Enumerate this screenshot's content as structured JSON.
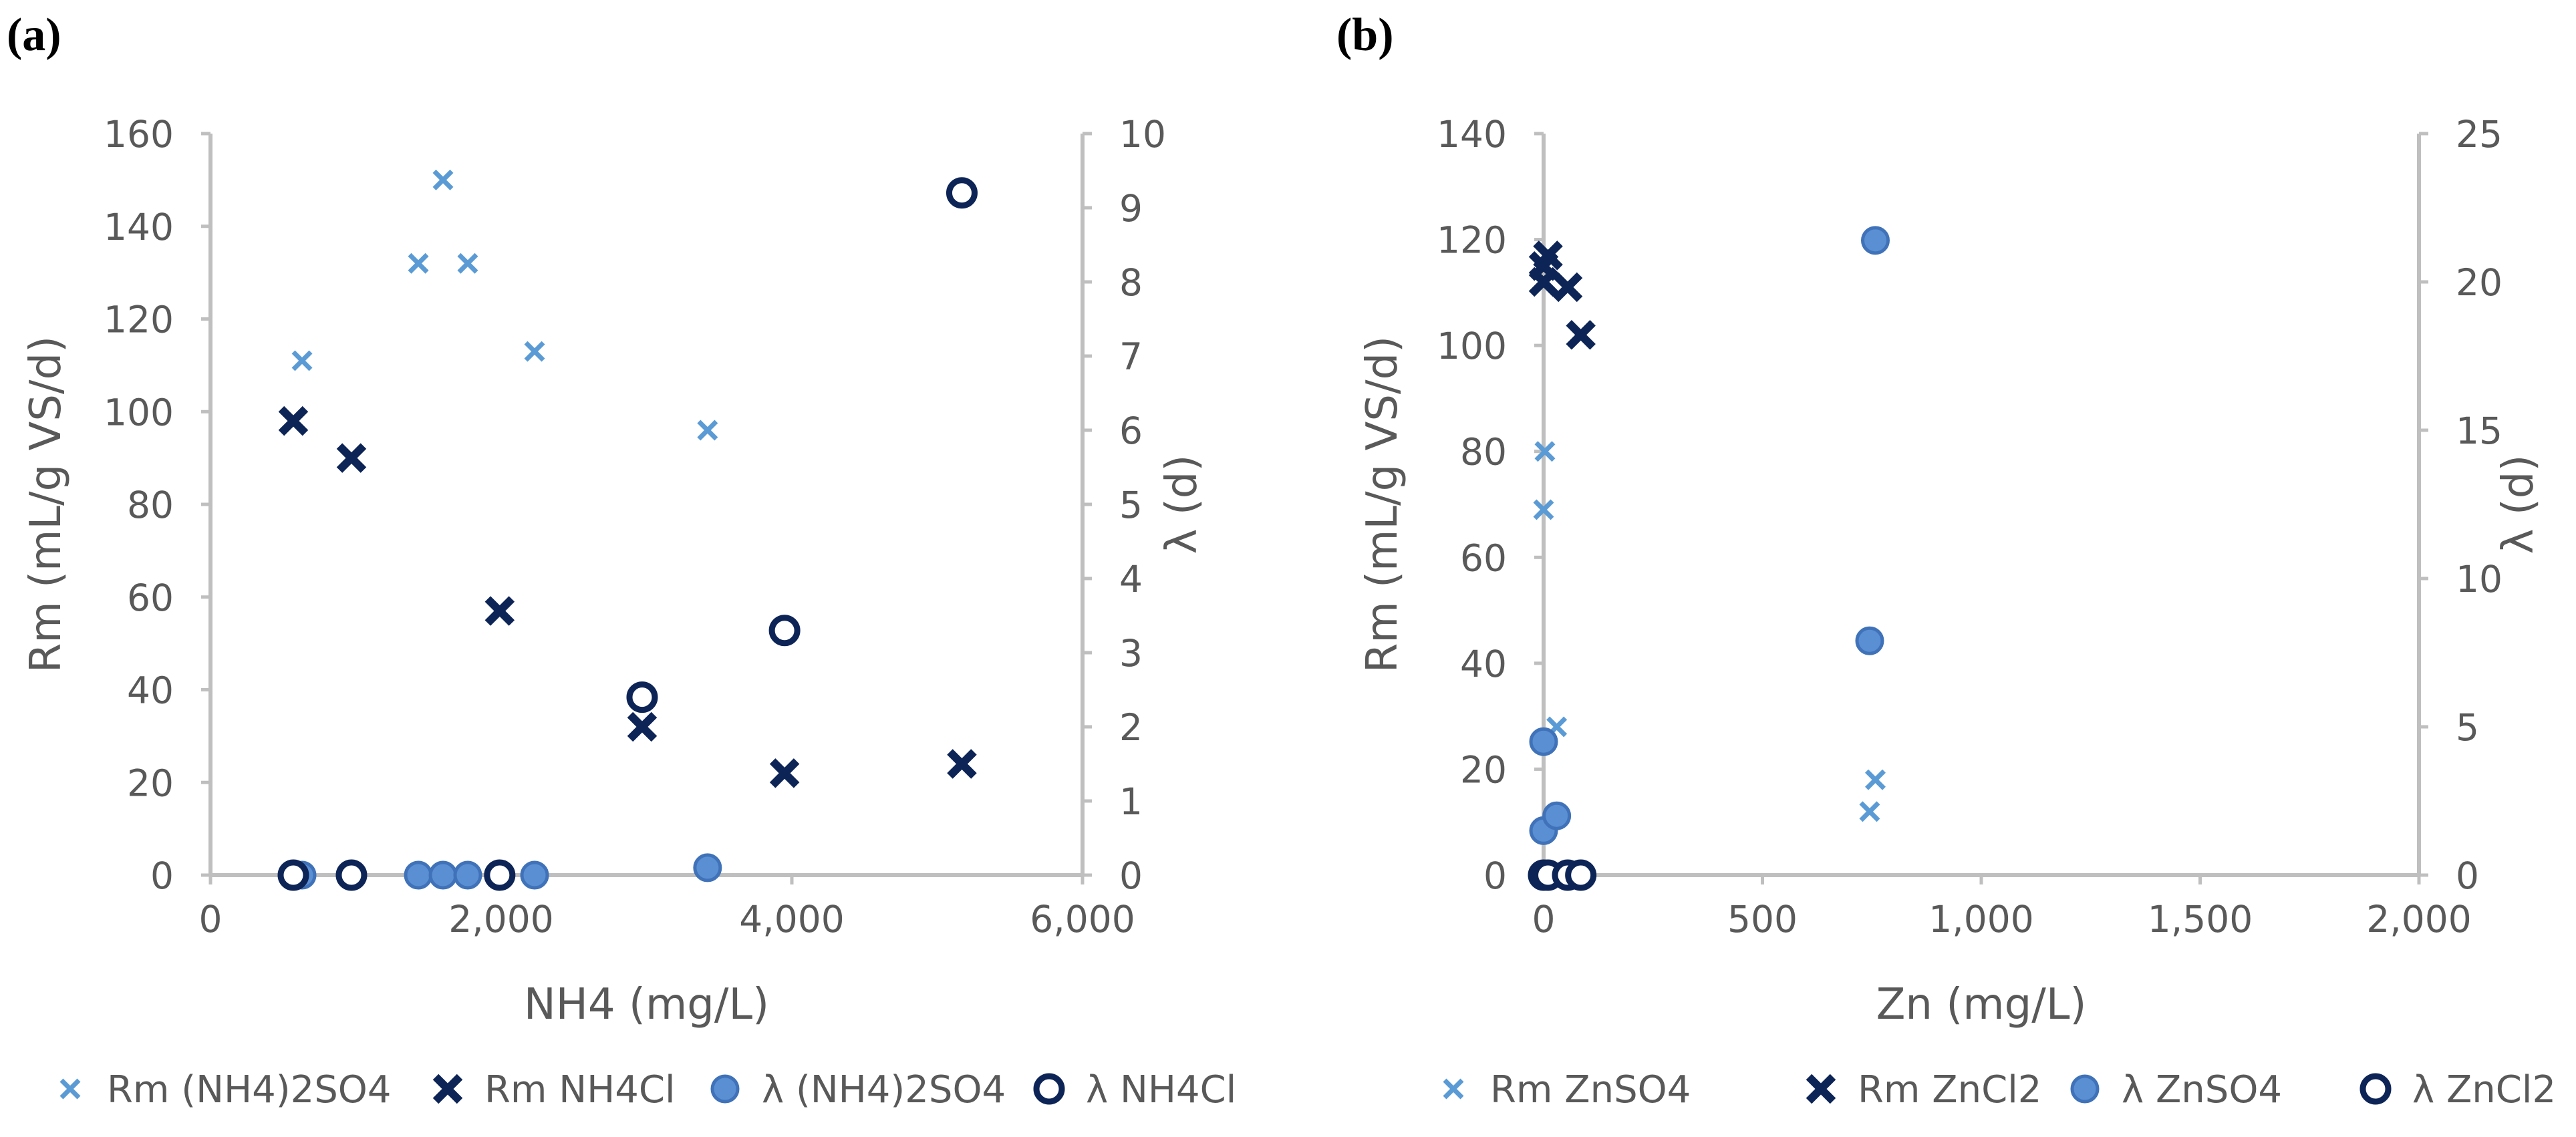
{
  "chart_data": [
    {
      "type": "scatter",
      "panel_label": "(a)",
      "xlabel": "NH4 (mg/L)",
      "ylabel": "Rm (mL/g VS/d)",
      "y2label": "λ (d)",
      "xlim": [
        0,
        6000
      ],
      "ylim": [
        0,
        160
      ],
      "y2lim": [
        0,
        10
      ],
      "xticks": [
        "0",
        "2,000",
        "4,000",
        "6,000"
      ],
      "yticks": [
        "0",
        "20",
        "40",
        "60",
        "80",
        "100",
        "120",
        "140",
        "160"
      ],
      "y2ticks": [
        "0",
        "1",
        "2",
        "3",
        "4",
        "5",
        "6",
        "7",
        "8",
        "9",
        "10"
      ],
      "series": [
        {
          "name": "Rm (NH4)2SO4",
          "marker": "x-light",
          "axis": "left",
          "points": [
            [
              630,
              111
            ],
            [
              1430,
              132
            ],
            [
              1600,
              150
            ],
            [
              1770,
              132
            ],
            [
              2230,
              113
            ],
            [
              3420,
              96
            ]
          ]
        },
        {
          "name": "Rm NH4Cl",
          "marker": "x-dark",
          "axis": "left",
          "points": [
            [
              570,
              98
            ],
            [
              970,
              90
            ],
            [
              1990,
              57
            ],
            [
              2970,
              32
            ],
            [
              3950,
              22
            ],
            [
              5170,
              24
            ]
          ]
        },
        {
          "name": "λ (NH4)2SO4",
          "marker": "dot-filled",
          "axis": "right",
          "points": [
            [
              630,
              0
            ],
            [
              1430,
              0
            ],
            [
              1600,
              0
            ],
            [
              1770,
              0
            ],
            [
              2230,
              0
            ],
            [
              3420,
              0.1
            ]
          ]
        },
        {
          "name": "λ NH4Cl",
          "marker": "circle-open",
          "axis": "right",
          "points": [
            [
              570,
              0
            ],
            [
              970,
              0
            ],
            [
              1990,
              0
            ],
            [
              2970,
              2.4
            ],
            [
              3950,
              3.3
            ],
            [
              5170,
              9.2
            ]
          ]
        }
      ]
    },
    {
      "type": "scatter",
      "panel_label": "(b)",
      "xlabel": "Zn (mg/L)",
      "ylabel": "Rm (mL/g VS/d)",
      "y2label": "λ (d)",
      "xlim": [
        0,
        2000
      ],
      "ylim": [
        0,
        140
      ],
      "y2lim": [
        0,
        25
      ],
      "xticks": [
        "0",
        "500",
        "1,000",
        "1,500",
        "2,000"
      ],
      "yticks": [
        "0",
        "20",
        "40",
        "60",
        "80",
        "100",
        "120",
        "140"
      ],
      "y2ticks": [
        "0",
        "5",
        "10",
        "15",
        "20",
        "25"
      ],
      "series": [
        {
          "name": "Rm ZnSO4",
          "marker": "x-light",
          "axis": "left",
          "points": [
            [
              0,
              69
            ],
            [
              3,
              80
            ],
            [
              30,
              28
            ],
            [
              745,
              12
            ],
            [
              758,
              18
            ]
          ]
        },
        {
          "name": "Rm ZnCl2",
          "marker": "x-dark",
          "axis": "left",
          "points": [
            [
              0,
              112
            ],
            [
              0,
              115
            ],
            [
              10,
              117
            ],
            [
              55,
              111
            ],
            [
              85,
              102
            ]
          ]
        },
        {
          "name": "λ ZnSO4",
          "marker": "dot-filled",
          "axis": "right",
          "points": [
            [
              0,
              1.5
            ],
            [
              0,
              4.5
            ],
            [
              30,
              2.0
            ],
            [
              745,
              7.9
            ],
            [
              758,
              21.4
            ]
          ]
        },
        {
          "name": "λ ZnCl2",
          "marker": "circle-open",
          "axis": "right",
          "points": [
            [
              0,
              0
            ],
            [
              10,
              0
            ],
            [
              55,
              0
            ],
            [
              85,
              0
            ]
          ]
        }
      ]
    }
  ]
}
